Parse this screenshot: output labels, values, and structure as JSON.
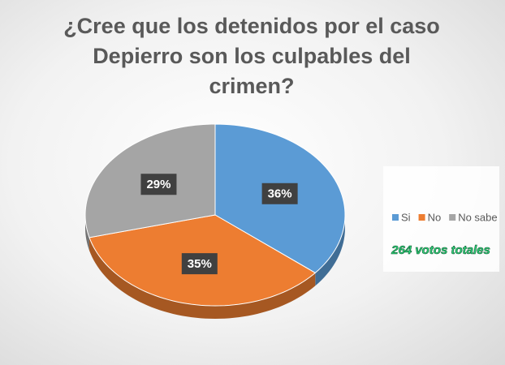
{
  "chart_data": {
    "type": "pie3d",
    "title": "¿Cree que los detenidos por el caso Depierro son los culpables del crimen?",
    "series": [
      {
        "name": "Si",
        "color": "#5b9bd5",
        "values": [
          36
        ],
        "value_labels": [
          "36%"
        ]
      },
      {
        "name": "No",
        "color": "#ed7d31",
        "values": [
          35
        ],
        "value_labels": [
          "35%"
        ]
      },
      {
        "name": "No sabe",
        "color": "#a5a5a5",
        "values": [
          29
        ],
        "value_labels": [
          "29%"
        ]
      }
    ],
    "legend": "right",
    "annotation": "264 votos totales",
    "annotation_color": "#2fd07a"
  }
}
